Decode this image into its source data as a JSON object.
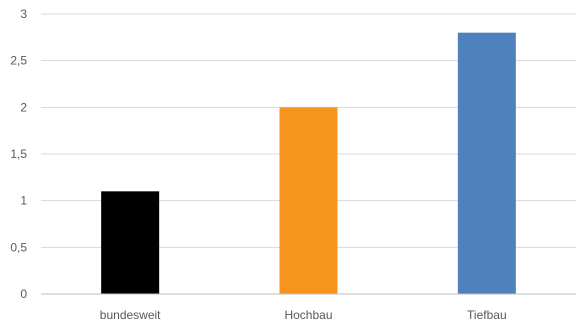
{
  "chart_data": {
    "type": "bar",
    "title": "",
    "xlabel": "",
    "ylabel": "",
    "categories": [
      "bundesweit",
      "Hochbau",
      "Tiefbau"
    ],
    "values": [
      1.1,
      2.0,
      2.8
    ],
    "colors": [
      "#000000",
      "#f7941d",
      "#4f81bd"
    ],
    "ylim": [
      0,
      3
    ],
    "yticks": [
      0,
      0.5,
      1,
      1.5,
      2,
      2.5,
      3
    ],
    "ytick_labels": [
      "0",
      "0,5",
      "1",
      "1,5",
      "2",
      "2,5",
      "3"
    ],
    "grid": true,
    "legend": "none"
  }
}
